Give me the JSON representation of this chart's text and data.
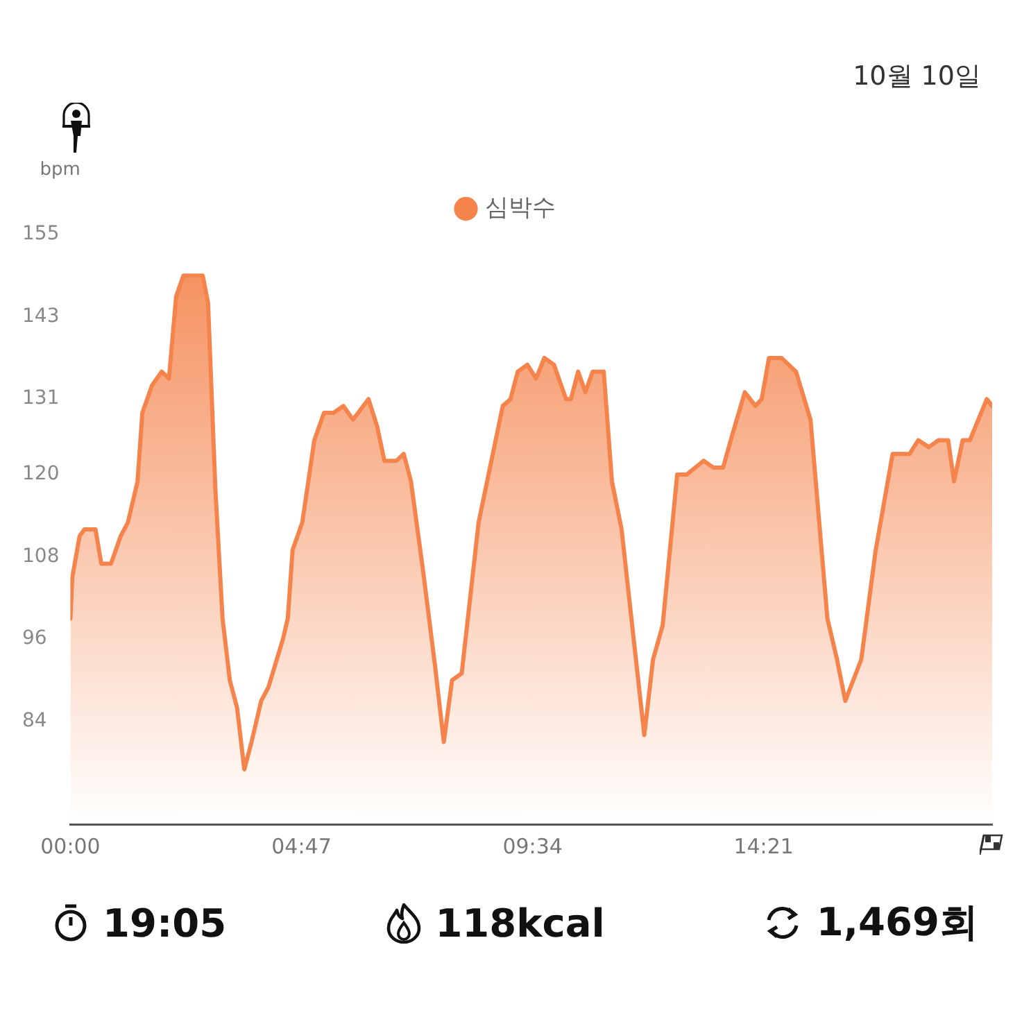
{
  "chart_data": {
    "type": "area",
    "title": "10월 10일",
    "ylabel": "bpm",
    "annotations": [
      "19:05",
      "118kcal",
      "1,469회"
    ],
    "x": [
      0,
      0.04,
      0.19,
      0.29,
      0.52,
      0.64,
      0.84,
      1.04,
      1.19,
      1.39,
      1.49,
      1.69,
      1.89,
      2.04,
      2.19,
      2.34,
      2.74,
      2.85,
      3.0,
      3.15,
      3.3,
      3.45,
      3.6,
      3.75,
      3.95,
      4.1,
      4.4,
      4.5,
      4.6,
      4.8,
      5.05,
      5.25,
      5.45,
      5.65,
      5.85,
      6.17,
      6.35,
      6.5,
      6.75,
      6.9,
      7.05,
      7.3,
      7.55,
      7.73,
      7.9,
      8.1,
      8.45,
      8.95,
      9.11,
      9.26,
      9.46,
      9.64,
      9.81,
      10.01,
      10.26,
      10.36,
      10.51,
      10.66,
      10.81,
      11.04,
      11.21,
      11.41,
      11.66,
      11.88,
      12.06,
      12.26,
      12.56,
      12.76,
      13.11,
      13.31,
      13.51,
      13.71,
      13.96,
      14.18,
      14.31,
      14.46,
      14.72,
      15.02,
      15.32,
      15.67,
      15.87,
      16.04,
      16.37,
      16.67,
      17.02,
      17.17,
      17.37,
      17.55,
      17.77,
      17.97,
      18.17,
      18.29,
      18.47,
      18.62,
      18.97,
      19.08
    ],
    "series": [
      {
        "name": "심박수",
        "color": "#f4844c",
        "values": [
          99,
          105,
          111,
          112,
          112,
          107,
          107,
          111,
          113,
          119,
          129,
          133,
          135,
          134,
          146,
          149,
          149,
          145,
          118,
          99,
          90,
          86,
          77,
          81,
          87,
          89,
          96,
          99,
          109,
          113,
          125,
          129,
          129,
          130,
          128,
          131,
          127,
          122,
          122,
          123,
          119,
          106,
          92,
          81,
          90,
          91,
          113,
          130,
          131,
          135,
          136,
          134,
          137,
          136,
          131,
          131,
          135,
          132,
          135,
          135,
          119,
          112,
          96,
          82,
          93,
          98,
          120,
          120,
          122,
          121,
          121,
          126,
          132,
          130,
          131,
          137,
          137,
          135,
          128,
          99,
          93,
          87,
          93,
          109,
          123,
          123,
          123,
          125,
          124,
          125,
          125,
          119,
          125,
          125,
          131,
          130
        ]
      }
    ],
    "xlim": [
      0,
      19.08
    ],
    "xticks": [
      {
        "value": 0,
        "label": "00:00"
      },
      {
        "value": 4.783,
        "label": "04:47"
      },
      {
        "value": 9.567,
        "label": "09:34"
      },
      {
        "value": 14.35,
        "label": "14:21"
      }
    ],
    "ylim": [
      69,
      155
    ],
    "yticks": [
      84,
      96,
      108,
      120,
      131,
      143,
      155
    ],
    "grid": false,
    "legend": "top",
    "marker": "none",
    "line_style": "solid"
  }
}
